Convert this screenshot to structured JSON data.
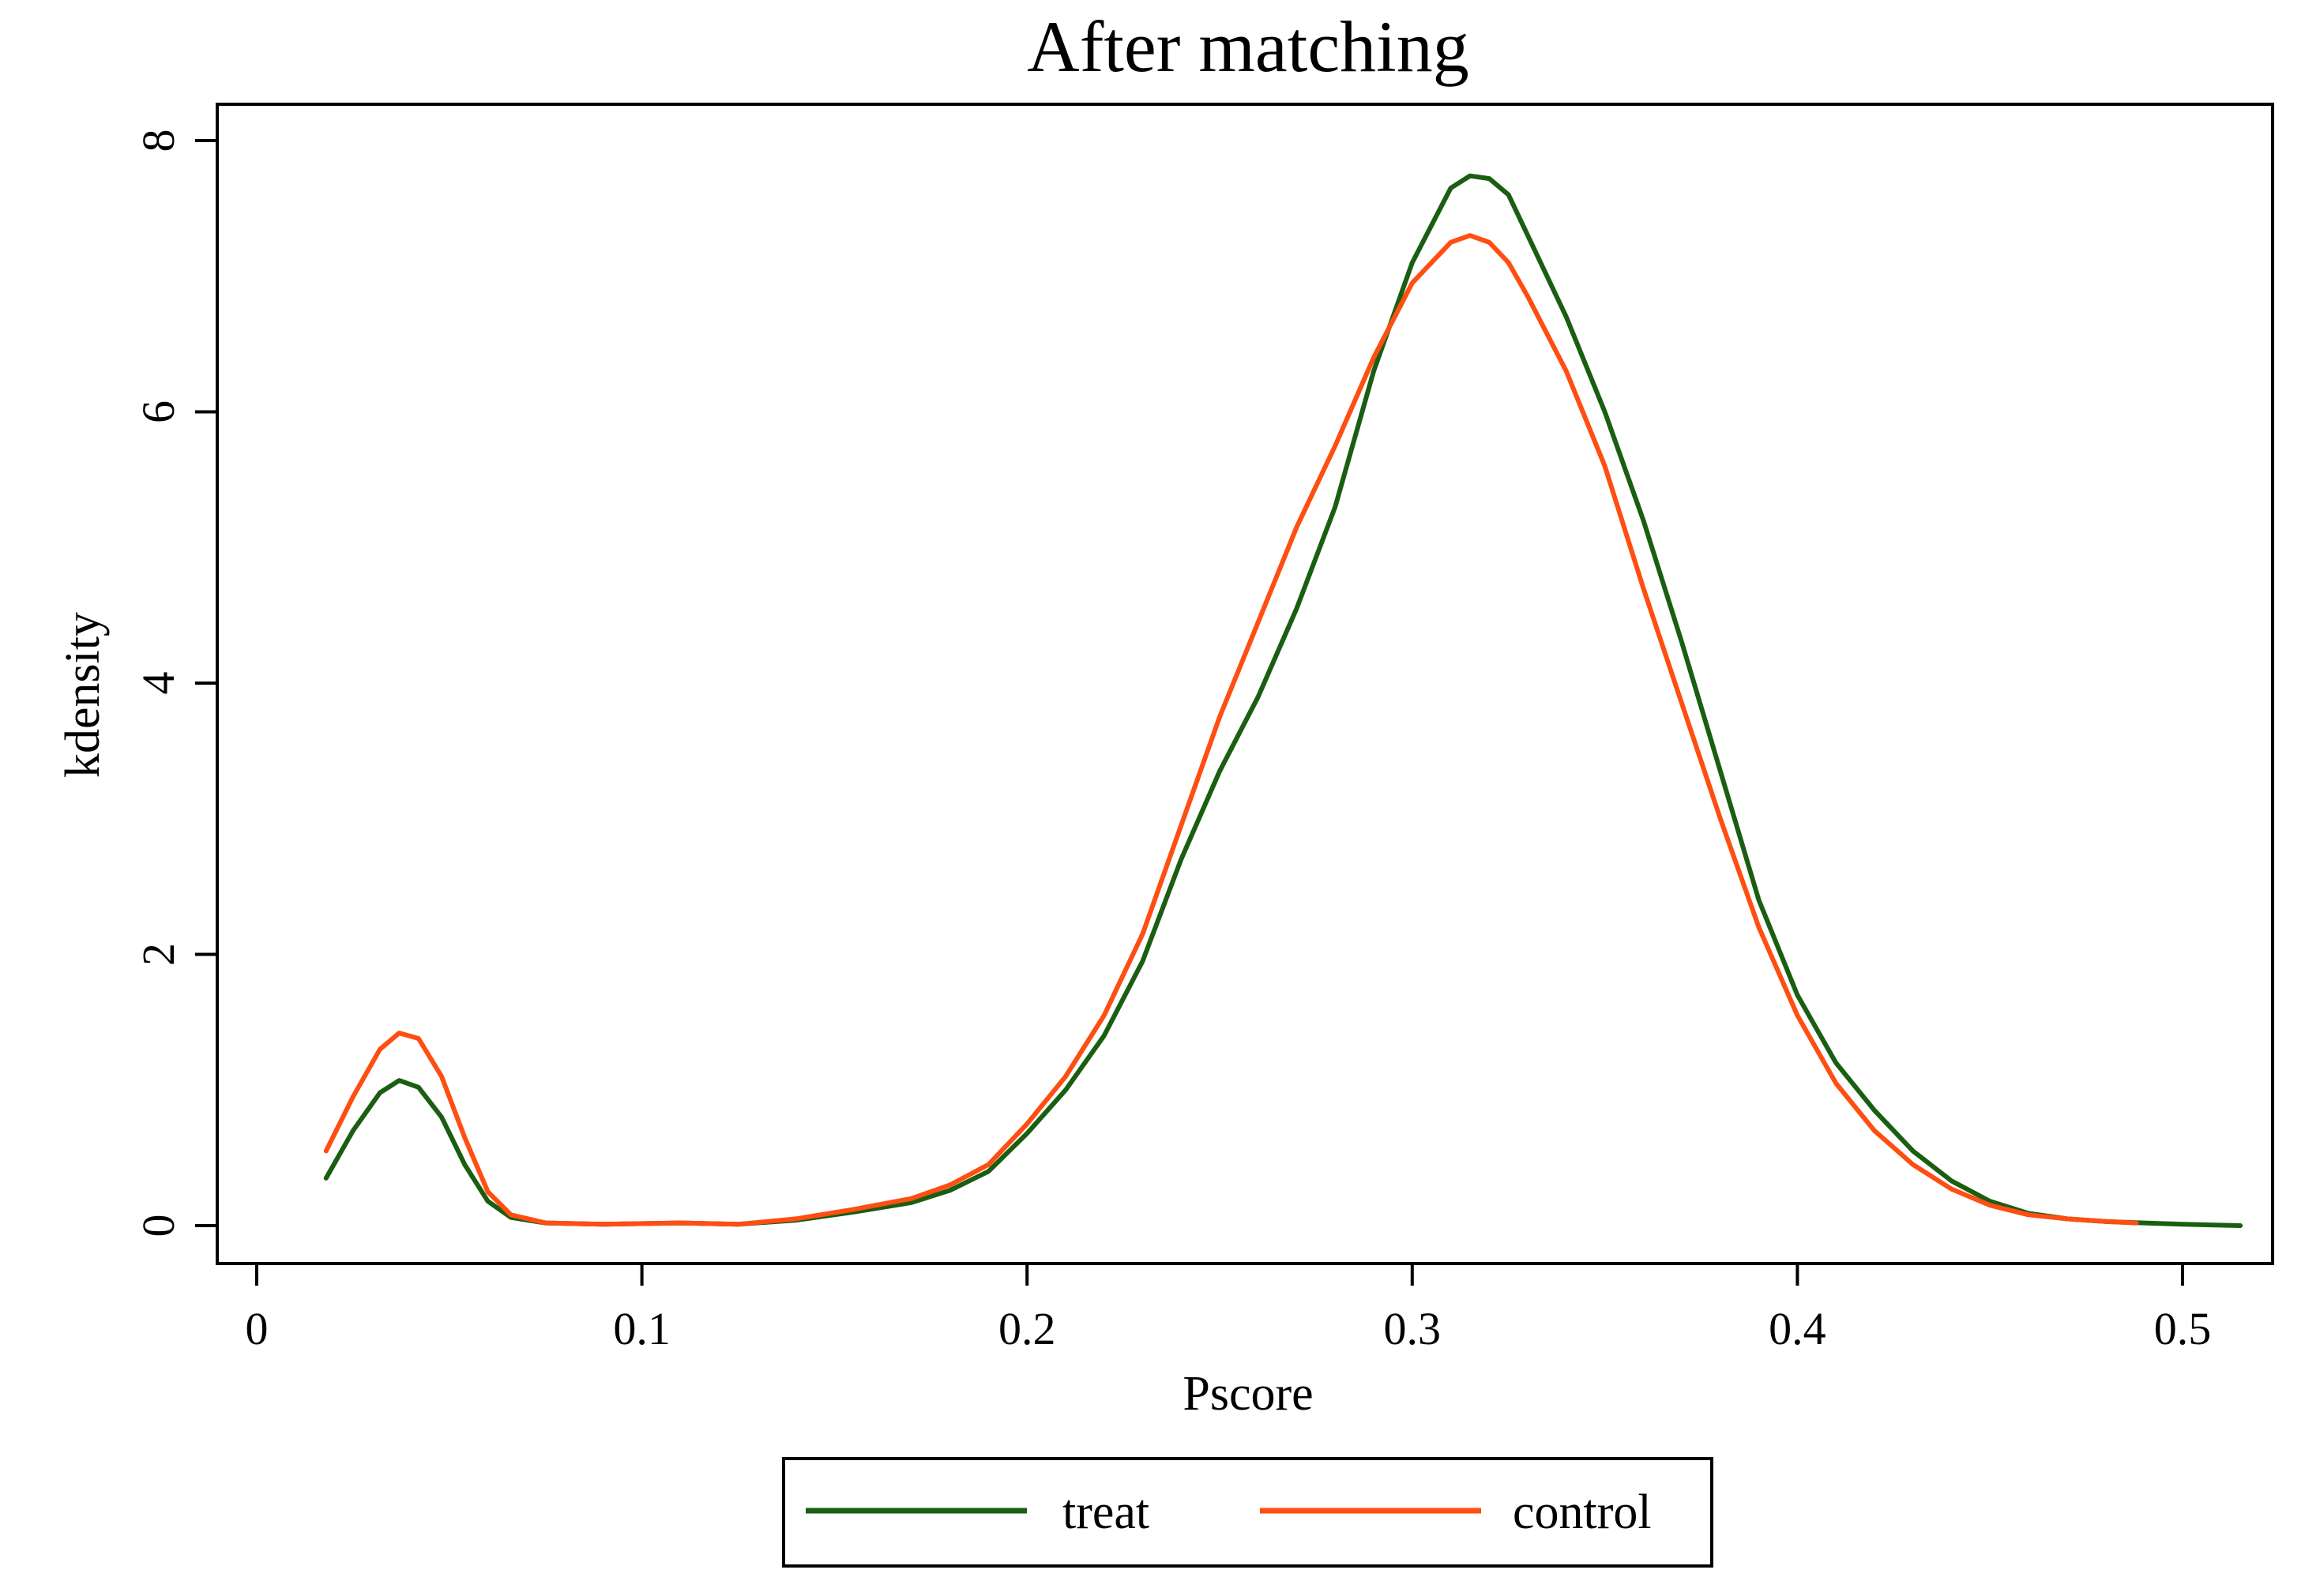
{
  "chart_data": {
    "type": "line",
    "title": "After matching",
    "xlabel": "Pscore",
    "ylabel": "kdensity",
    "xlim": [
      0,
      0.52
    ],
    "ylim": [
      0,
      8
    ],
    "xticks": [
      0,
      0.1,
      0.2,
      0.3,
      0.4,
      0.5
    ],
    "xtick_labels": [
      "0",
      "0.1",
      "0.2",
      "0.3",
      "0.4",
      "0.5"
    ],
    "yticks": [
      0,
      2,
      4,
      6,
      8
    ],
    "ytick_labels": [
      "0",
      "2",
      "4",
      "6",
      "8"
    ],
    "grid": false,
    "legend_position": "bottom",
    "series": [
      {
        "name": "treat",
        "color": "#1a5e12",
        "points": [
          [
            0.018,
            0.35
          ],
          [
            0.025,
            0.7
          ],
          [
            0.032,
            0.98
          ],
          [
            0.037,
            1.07
          ],
          [
            0.042,
            1.02
          ],
          [
            0.048,
            0.8
          ],
          [
            0.054,
            0.45
          ],
          [
            0.06,
            0.18
          ],
          [
            0.066,
            0.06
          ],
          [
            0.075,
            0.02
          ],
          [
            0.09,
            0.01
          ],
          [
            0.11,
            0.02
          ],
          [
            0.125,
            0.01
          ],
          [
            0.14,
            0.04
          ],
          [
            0.155,
            0.1
          ],
          [
            0.17,
            0.17
          ],
          [
            0.18,
            0.26
          ],
          [
            0.19,
            0.4
          ],
          [
            0.2,
            0.68
          ],
          [
            0.21,
            1.0
          ],
          [
            0.22,
            1.4
          ],
          [
            0.23,
            1.95
          ],
          [
            0.24,
            2.7
          ],
          [
            0.25,
            3.35
          ],
          [
            0.26,
            3.9
          ],
          [
            0.27,
            4.55
          ],
          [
            0.28,
            5.3
          ],
          [
            0.29,
            6.3
          ],
          [
            0.3,
            7.1
          ],
          [
            0.31,
            7.65
          ],
          [
            0.315,
            7.74
          ],
          [
            0.32,
            7.72
          ],
          [
            0.325,
            7.6
          ],
          [
            0.33,
            7.3
          ],
          [
            0.34,
            6.7
          ],
          [
            0.35,
            6.0
          ],
          [
            0.36,
            5.2
          ],
          [
            0.37,
            4.3
          ],
          [
            0.38,
            3.35
          ],
          [
            0.39,
            2.4
          ],
          [
            0.4,
            1.7
          ],
          [
            0.41,
            1.2
          ],
          [
            0.42,
            0.85
          ],
          [
            0.43,
            0.55
          ],
          [
            0.44,
            0.33
          ],
          [
            0.45,
            0.18
          ],
          [
            0.46,
            0.09
          ],
          [
            0.47,
            0.05
          ],
          [
            0.48,
            0.03
          ],
          [
            0.49,
            0.02
          ],
          [
            0.5,
            0.01
          ],
          [
            0.515,
            0.0
          ]
        ]
      },
      {
        "name": "control",
        "color": "#ff4e12",
        "points": [
          [
            0.018,
            0.55
          ],
          [
            0.025,
            0.95
          ],
          [
            0.032,
            1.3
          ],
          [
            0.037,
            1.42
          ],
          [
            0.042,
            1.38
          ],
          [
            0.048,
            1.1
          ],
          [
            0.054,
            0.65
          ],
          [
            0.06,
            0.25
          ],
          [
            0.066,
            0.08
          ],
          [
            0.075,
            0.02
          ],
          [
            0.09,
            0.01
          ],
          [
            0.11,
            0.02
          ],
          [
            0.125,
            0.01
          ],
          [
            0.14,
            0.05
          ],
          [
            0.155,
            0.12
          ],
          [
            0.17,
            0.2
          ],
          [
            0.18,
            0.3
          ],
          [
            0.19,
            0.45
          ],
          [
            0.2,
            0.75
          ],
          [
            0.21,
            1.1
          ],
          [
            0.22,
            1.55
          ],
          [
            0.23,
            2.15
          ],
          [
            0.24,
            2.95
          ],
          [
            0.25,
            3.75
          ],
          [
            0.26,
            4.45
          ],
          [
            0.27,
            5.15
          ],
          [
            0.28,
            5.75
          ],
          [
            0.29,
            6.4
          ],
          [
            0.3,
            6.95
          ],
          [
            0.31,
            7.25
          ],
          [
            0.315,
            7.3
          ],
          [
            0.32,
            7.25
          ],
          [
            0.325,
            7.1
          ],
          [
            0.33,
            6.85
          ],
          [
            0.34,
            6.3
          ],
          [
            0.35,
            5.6
          ],
          [
            0.36,
            4.7
          ],
          [
            0.37,
            3.85
          ],
          [
            0.38,
            3.0
          ],
          [
            0.39,
            2.2
          ],
          [
            0.4,
            1.55
          ],
          [
            0.41,
            1.05
          ],
          [
            0.42,
            0.7
          ],
          [
            0.43,
            0.45
          ],
          [
            0.44,
            0.27
          ],
          [
            0.45,
            0.15
          ],
          [
            0.46,
            0.08
          ],
          [
            0.47,
            0.05
          ],
          [
            0.48,
            0.03
          ],
          [
            0.488,
            0.02
          ]
        ]
      }
    ]
  }
}
